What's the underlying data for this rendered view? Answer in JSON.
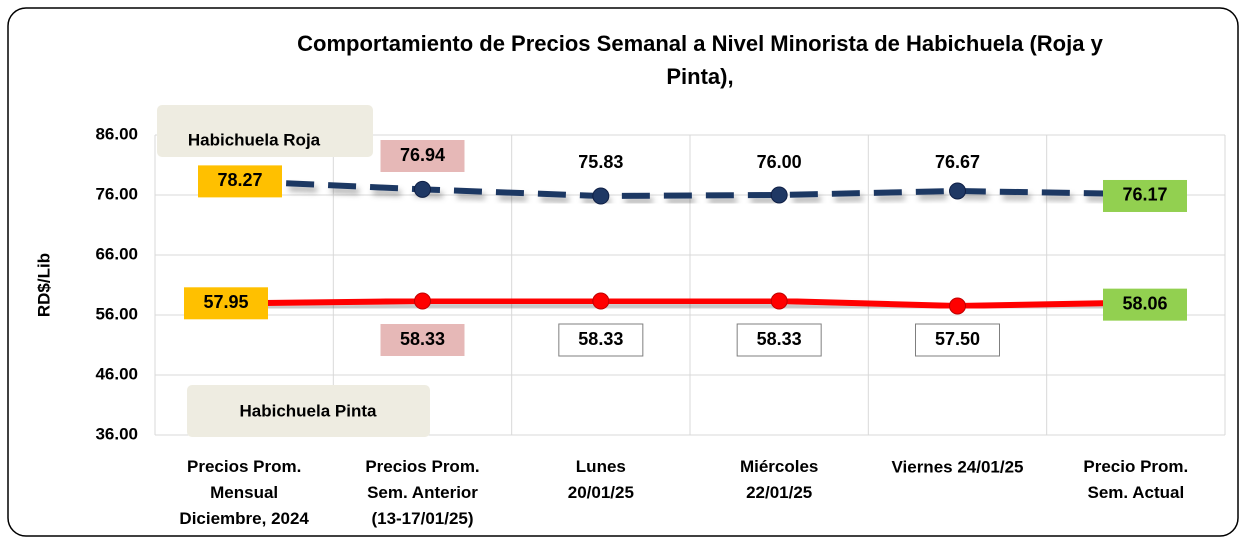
{
  "chart_data": {
    "type": "line",
    "title": "Comportamiento de Precios Semanal a Nivel Minorista de Habichuela (Roja  y\nPinta),",
    "y_label": "RD$/Lib",
    "categories": [
      "Precios Prom.\nMensual\nDiciembre, 2024",
      "Precios Prom.\nSem. Anterior\n(13-17/01/25)",
      "Lunes\n20/01/25",
      "Miércoles\n22/01/25",
      "Viernes 24/01/25",
      "Precio Prom.\nSem. Actual"
    ],
    "series": [
      {
        "name": "Habichuela Roja",
        "color": "#1f3864",
        "dashed": true,
        "values": [
          78.27,
          76.94,
          75.83,
          76.0,
          76.67,
          76.17
        ],
        "value_labels": [
          "78.27",
          "76.94",
          "75.83",
          "76.00",
          "76.67",
          "76.17"
        ],
        "markers": [
          false,
          true,
          true,
          true,
          true,
          false
        ],
        "label_fills": [
          "#ffc000",
          "#e6b8b7",
          "none",
          "none",
          "none",
          "#92d050"
        ]
      },
      {
        "name": "Habichuela Pinta",
        "color": "#ff0000",
        "dashed": false,
        "values": [
          57.95,
          58.33,
          58.33,
          58.33,
          57.5,
          58.06
        ],
        "value_labels": [
          "57.95",
          "58.33",
          "58.33",
          "58.33",
          "57.50",
          "58.06"
        ],
        "markers": [
          false,
          true,
          true,
          true,
          true,
          false
        ],
        "label_fills": [
          "#ffc000",
          "#e6b8b7",
          "#ffffff",
          "#ffffff",
          "#ffffff",
          "#92d050"
        ]
      }
    ],
    "ylim": [
      36,
      86
    ],
    "yticks": [
      {
        "value": 36,
        "label": "36.00"
      },
      {
        "value": 46,
        "label": "46.00"
      },
      {
        "value": 56,
        "label": "56.00"
      },
      {
        "value": 66,
        "label": "66.00"
      },
      {
        "value": 76,
        "label": "76.00"
      },
      {
        "value": 86,
        "label": "86.00"
      }
    ],
    "grid": true
  }
}
